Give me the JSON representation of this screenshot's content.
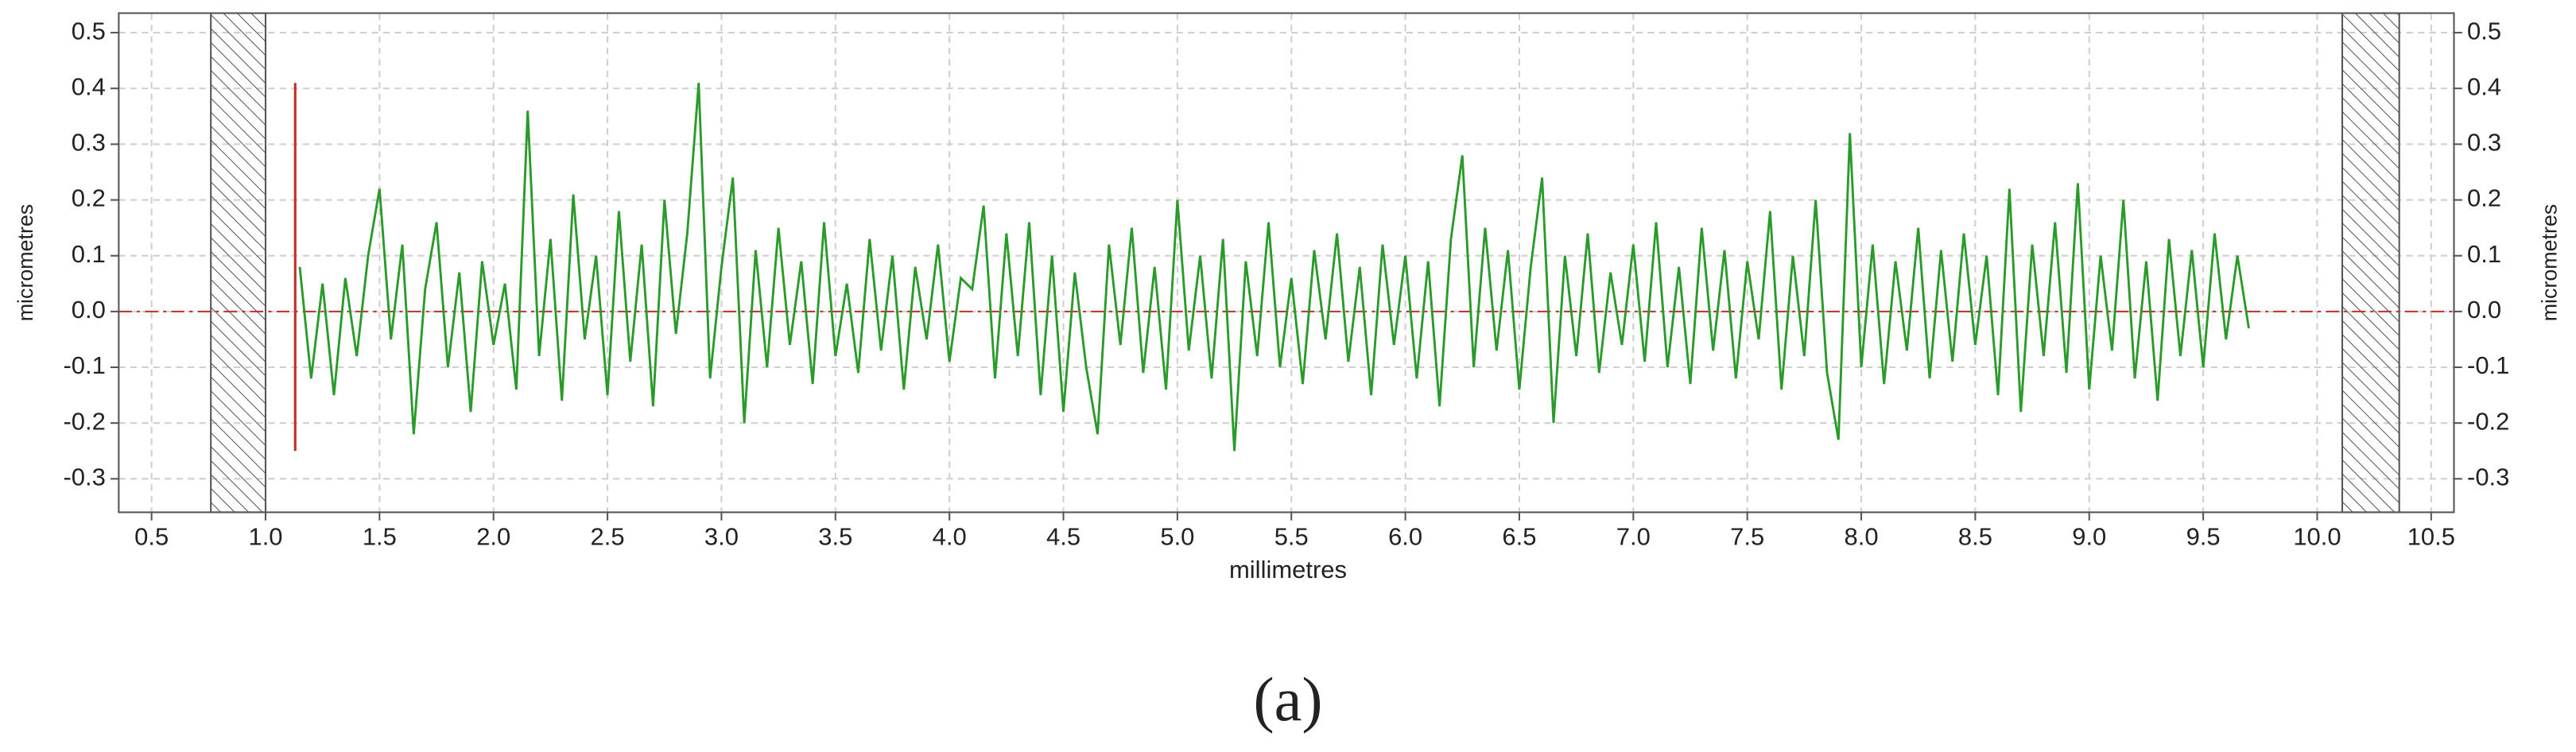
{
  "chart_data": {
    "type": "line",
    "xlabel": "millimetres",
    "ylabel": "micrometres",
    "caption": "(a)",
    "xlim": [
      0.356,
      10.6
    ],
    "ylim": [
      -0.36,
      0.535
    ],
    "xticks": [
      0.5,
      {
        "value": 1,
        "label": "1.0"
      },
      1.5,
      {
        "value": 2,
        "label": "2.0"
      },
      2.5,
      {
        "value": 3,
        "label": "3.0"
      },
      3.5,
      {
        "value": 4,
        "label": "4.0"
      },
      4.5,
      {
        "value": 5,
        "label": "5.0"
      },
      5.5,
      {
        "value": 6,
        "label": "6.0"
      },
      6.5,
      {
        "value": 7,
        "label": "7.0"
      },
      7.5,
      {
        "value": 8,
        "label": "8.0"
      },
      8.5,
      {
        "value": 9,
        "label": "9.0"
      },
      9.5,
      {
        "value": 10,
        "label": "10.0"
      },
      10.5
    ],
    "yticks": [
      -0.3,
      -0.2,
      -0.1,
      {
        "value": 0,
        "label": "0.0"
      },
      0.1,
      0.2,
      0.3,
      0.4,
      0.5
    ],
    "grid": true,
    "excluded_ranges": [
      [
        0.76,
        1.0
      ],
      [
        10.11,
        10.36
      ]
    ],
    "marker": {
      "x": 1.13,
      "ymin": -0.25,
      "ymax": 0.41,
      "color": "#c0302a"
    },
    "zero_line_color": "#c0302a",
    "series": [
      {
        "color": "#2a9a2a",
        "x": [
          1.15,
          1.2,
          1.25,
          1.3,
          1.35,
          1.4,
          1.45,
          1.5,
          1.55,
          1.6,
          1.65,
          1.7,
          1.75,
          1.8,
          1.85,
          1.9,
          1.95,
          2.0,
          2.05,
          2.1,
          2.15,
          2.2,
          2.25,
          2.3,
          2.35,
          2.4,
          2.45,
          2.5,
          2.55,
          2.6,
          2.65,
          2.7,
          2.75,
          2.8,
          2.85,
          2.9,
          2.95,
          3.0,
          3.05,
          3.1,
          3.15,
          3.2,
          3.25,
          3.3,
          3.35,
          3.4,
          3.45,
          3.5,
          3.55,
          3.6,
          3.65,
          3.7,
          3.75,
          3.8,
          3.85,
          3.9,
          3.95,
          4.0,
          4.05,
          4.1,
          4.15,
          4.2,
          4.25,
          4.3,
          4.35,
          4.4,
          4.45,
          4.5,
          4.55,
          4.6,
          4.65,
          4.7,
          4.75,
          4.8,
          4.85,
          4.9,
          4.95,
          5.0,
          5.05,
          5.1,
          5.15,
          5.2,
          5.25,
          5.3,
          5.35,
          5.4,
          5.45,
          5.5,
          5.55,
          5.6,
          5.65,
          5.7,
          5.75,
          5.8,
          5.85,
          5.9,
          5.95,
          6.0,
          6.05,
          6.1,
          6.15,
          6.2,
          6.25,
          6.3,
          6.35,
          6.4,
          6.45,
          6.5,
          6.55,
          6.6,
          6.65,
          6.7,
          6.75,
          6.8,
          6.85,
          6.9,
          6.95,
          7.0,
          7.05,
          7.1,
          7.15,
          7.2,
          7.25,
          7.3,
          7.35,
          7.4,
          7.45,
          7.5,
          7.55,
          7.6,
          7.65,
          7.7,
          7.75,
          7.8,
          7.85,
          7.9,
          7.95,
          8.0,
          8.05,
          8.1,
          8.15,
          8.2,
          8.25,
          8.3,
          8.35,
          8.4,
          8.45,
          8.5,
          8.55,
          8.6,
          8.65,
          8.7,
          8.75,
          8.8,
          8.85,
          8.9,
          8.95,
          9.0,
          9.05,
          9.1,
          9.15,
          9.2,
          9.25,
          9.3,
          9.35,
          9.4,
          9.45,
          9.5,
          9.55,
          9.6,
          9.65,
          9.7
        ],
        "values": [
          0.08,
          -0.12,
          0.05,
          -0.15,
          0.06,
          -0.08,
          0.1,
          0.22,
          -0.05,
          0.12,
          -0.22,
          0.04,
          0.16,
          -0.1,
          0.07,
          -0.18,
          0.09,
          -0.06,
          0.05,
          -0.14,
          0.36,
          -0.08,
          0.13,
          -0.16,
          0.21,
          -0.05,
          0.1,
          -0.15,
          0.18,
          -0.09,
          0.12,
          -0.17,
          0.2,
          -0.04,
          0.14,
          0.41,
          -0.12,
          0.08,
          0.24,
          -0.2,
          0.11,
          -0.1,
          0.15,
          -0.06,
          0.09,
          -0.13,
          0.16,
          -0.08,
          0.05,
          -0.11,
          0.13,
          -0.07,
          0.1,
          -0.14,
          0.08,
          -0.05,
          0.12,
          -0.09,
          0.06,
          0.04,
          0.19,
          -0.12,
          0.14,
          -0.08,
          0.16,
          -0.15,
          0.1,
          -0.18,
          0.07,
          -0.1,
          -0.22,
          0.12,
          -0.06,
          0.15,
          -0.11,
          0.08,
          -0.14,
          0.2,
          -0.07,
          0.1,
          -0.12,
          0.13,
          -0.25,
          0.09,
          -0.08,
          0.16,
          -0.1,
          0.06,
          -0.13,
          0.11,
          -0.05,
          0.14,
          -0.09,
          0.08,
          -0.15,
          0.12,
          -0.06,
          0.1,
          -0.12,
          0.09,
          -0.17,
          0.13,
          0.28,
          -0.1,
          0.15,
          -0.07,
          0.11,
          -0.14,
          0.08,
          0.24,
          -0.2,
          0.1,
          -0.08,
          0.14,
          -0.11,
          0.07,
          -0.06,
          0.12,
          -0.09,
          0.16,
          -0.1,
          0.08,
          -0.13,
          0.15,
          -0.07,
          0.11,
          -0.12,
          0.09,
          -0.05,
          0.18,
          -0.14,
          0.1,
          -0.08,
          0.2,
          -0.11,
          -0.23,
          0.32,
          -0.1,
          0.12,
          -0.13,
          0.09,
          -0.07,
          0.15,
          -0.12,
          0.11,
          -0.09,
          0.14,
          -0.06,
          0.1,
          -0.15,
          0.22,
          -0.18,
          0.12,
          -0.08,
          0.16,
          -0.11,
          0.23,
          -0.14,
          0.1,
          -0.07,
          0.2,
          -0.12,
          0.09,
          -0.16,
          0.13,
          -0.08,
          0.11,
          -0.1,
          0.14,
          -0.05,
          0.1,
          -0.03
        ]
      }
    ]
  }
}
